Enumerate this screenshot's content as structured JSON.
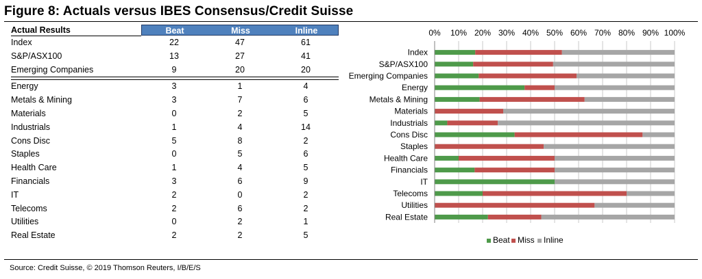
{
  "figure_title": "Figure 8: Actuals versus IBES Consensus/Credit Suisse",
  "table": {
    "header_label": "Actual Results",
    "columns": [
      "Beat",
      "Miss",
      "Inline"
    ],
    "groups": [
      [
        {
          "name": "Index",
          "values": [
            "22",
            "47",
            "61"
          ]
        },
        {
          "name": "S&P/ASX100",
          "values": [
            "13",
            "27",
            "41"
          ]
        },
        {
          "name": "Emerging Companies",
          "values": [
            "9",
            "20",
            "20"
          ]
        }
      ],
      [
        {
          "name": "Energy",
          "values": [
            "3",
            "1",
            "4"
          ]
        },
        {
          "name": "Metals & Mining",
          "values": [
            "3",
            "7",
            "6"
          ]
        },
        {
          "name": "Materials",
          "values": [
            "0",
            "2",
            "5"
          ]
        },
        {
          "name": "Industrials",
          "values": [
            "1",
            "4",
            "14"
          ]
        },
        {
          "name": "Cons Disc",
          "values": [
            "5",
            "8",
            "2"
          ]
        },
        {
          "name": "Staples",
          "values": [
            "0",
            "5",
            "6"
          ]
        },
        {
          "name": "Health Care",
          "values": [
            "1",
            "4",
            "5"
          ]
        },
        {
          "name": "Financials",
          "values": [
            "3",
            "6",
            "9"
          ]
        },
        {
          "name": "IT",
          "values": [
            "2",
            "0",
            "2"
          ]
        },
        {
          "name": "Telecoms",
          "values": [
            "2",
            "6",
            "2"
          ]
        },
        {
          "name": "Utilities",
          "values": [
            "0",
            "2",
            "1"
          ]
        },
        {
          "name": "Real Estate",
          "values": [
            "2",
            "2",
            "5"
          ]
        }
      ]
    ]
  },
  "chart_data": {
    "type": "bar",
    "orientation": "horizontal",
    "stacked": "percent",
    "categories": [
      "Index",
      "S&P/ASX100",
      "Emerging Companies",
      "Energy",
      "Metals & Mining",
      "Materials",
      "Industrials",
      "Cons Disc",
      "Staples",
      "Health Care",
      "Financials",
      "IT",
      "Telecoms",
      "Utilities",
      "Real Estate"
    ],
    "series": [
      {
        "name": "Beat",
        "color": "#4e9a4a",
        "values": [
          22,
          13,
          9,
          3,
          3,
          0,
          1,
          5,
          0,
          1,
          3,
          2,
          2,
          0,
          2
        ]
      },
      {
        "name": "Miss",
        "color": "#c0504d",
        "values": [
          47,
          27,
          20,
          1,
          7,
          2,
          4,
          8,
          5,
          4,
          6,
          0,
          6,
          2,
          2
        ]
      },
      {
        "name": "Inline",
        "color": "#a6a6a6",
        "values": [
          61,
          41,
          20,
          4,
          6,
          5,
          14,
          2,
          6,
          5,
          9,
          2,
          2,
          1,
          5
        ]
      }
    ],
    "x_ticks": [
      "0%",
      "10%",
      "20%",
      "30%",
      "40%",
      "50%",
      "60%",
      "70%",
      "80%",
      "90%",
      "100%"
    ],
    "xlim": [
      0,
      100
    ],
    "x_axis_position": "top",
    "grid": true,
    "legend": "bottom"
  },
  "source": "Source: Credit Suisse, © 2019 Thomson Reuters, I/B/E/S"
}
